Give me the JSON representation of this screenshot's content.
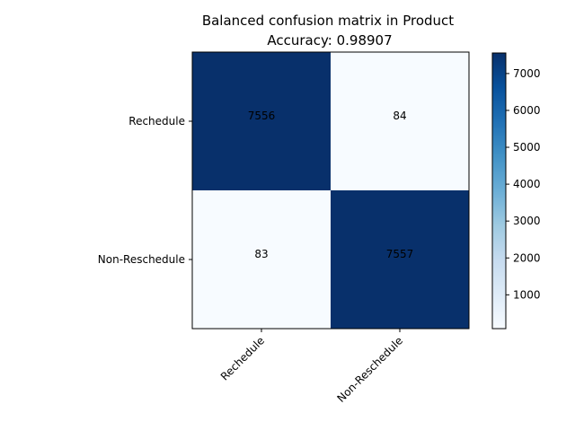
{
  "chart_data": {
    "type": "heatmap",
    "title": "Balanced confusion matrix in Product",
    "subtitle": "Accuracy: 0.98907",
    "row_labels": [
      "Rechedule",
      "Non-Reschedule"
    ],
    "col_labels": [
      "Rechedule",
      "Non-Reschedule"
    ],
    "values": [
      [
        7556,
        84
      ],
      [
        83,
        7557
      ]
    ],
    "colormap": "Blues",
    "color_range": [
      83,
      7557
    ],
    "colorbar_ticks": [
      "1000",
      "2000",
      "3000",
      "4000",
      "5000",
      "6000",
      "7000"
    ],
    "colors": {
      "low": "#f7fbff",
      "high": "#08306b"
    }
  }
}
